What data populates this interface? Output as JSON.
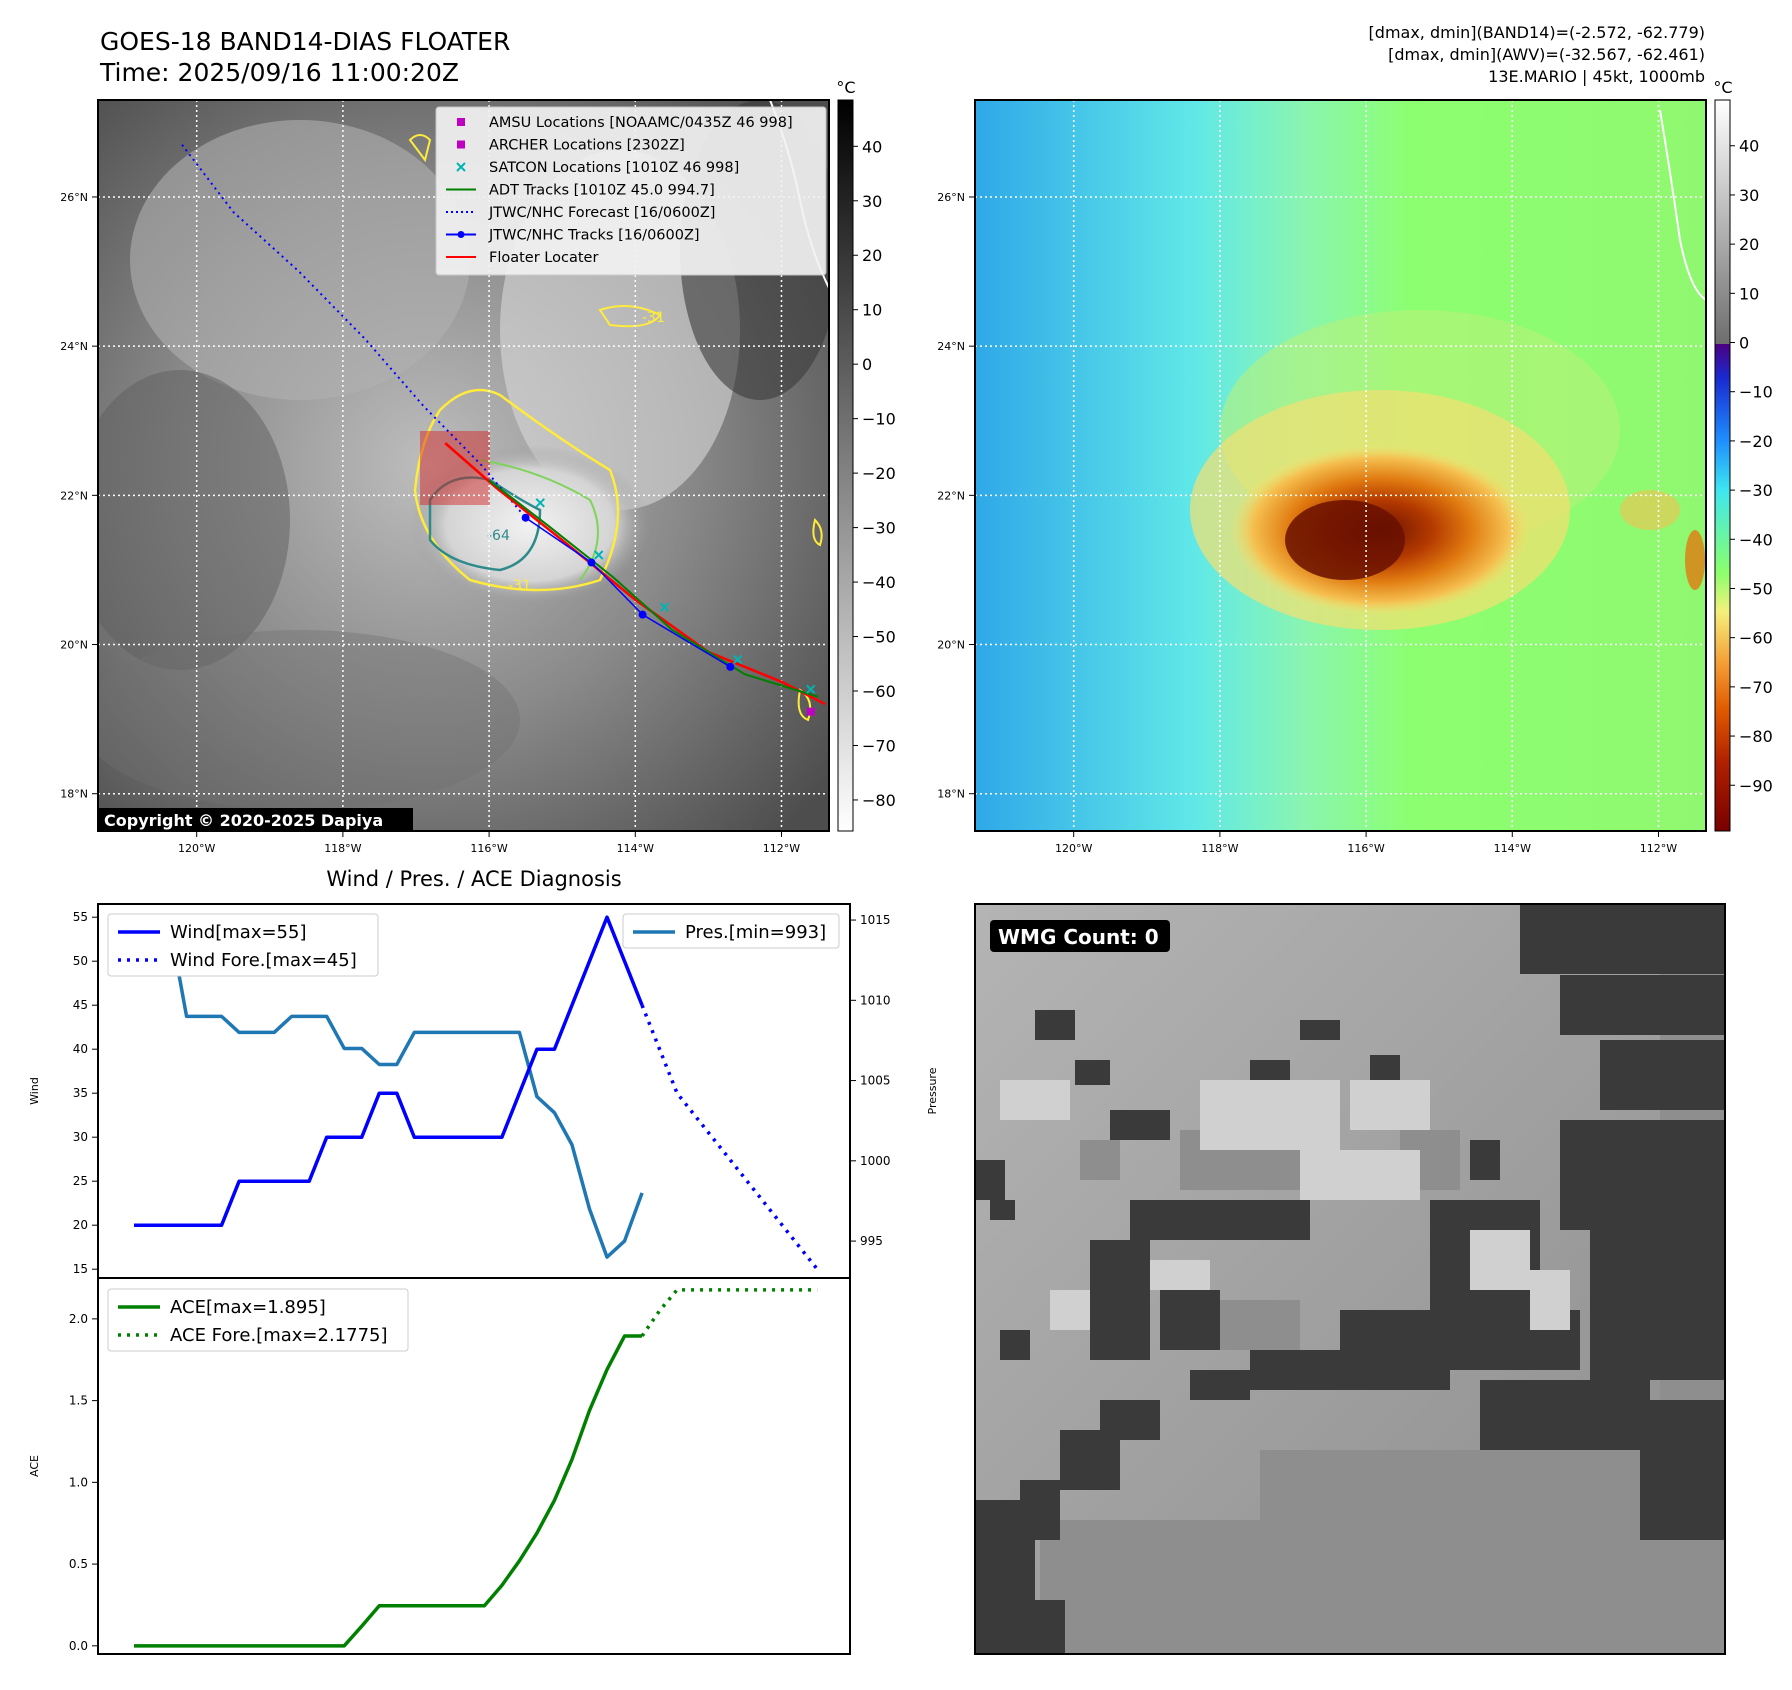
{
  "header": {
    "title": "GOES-18 BAND14-DIAS FLOATER",
    "time": "Time: 2025/09/16 11:00:20Z",
    "stats": [
      "[dmax, dmin](BAND14)=(-2.572, -62.779)",
      "[dmax, dmin](AWV)=(-32.567, -62.461)",
      "13E.MARIO | 45kt, 1000mb"
    ]
  },
  "map": {
    "lat_labels": [
      "26°N",
      "24°N",
      "22°N",
      "20°N",
      "18°N"
    ],
    "lat_values": [
      26,
      24,
      22,
      20,
      18
    ],
    "lon_labels": [
      "120°W",
      "118°W",
      "116°W",
      "114°W",
      "112°W"
    ],
    "lon_values": [
      -120,
      -118,
      -116,
      -114,
      -112
    ],
    "copyright": "Copyright © 2020-2025 Dapiya",
    "contour_labels": [
      "-31",
      "-64",
      "-31"
    ]
  },
  "colorbar_left": {
    "unit": "°C",
    "ticks": [
      "40",
      "30",
      "20",
      "10",
      "0",
      "−10",
      "−20",
      "−30",
      "−40",
      "−50",
      "−60",
      "−70",
      "−80"
    ],
    "values": [
      40,
      30,
      20,
      10,
      0,
      -10,
      -20,
      -30,
      -40,
      -50,
      -60,
      -70,
      -80
    ]
  },
  "colorbar_right": {
    "unit": "°C",
    "ticks": [
      "40",
      "30",
      "20",
      "10",
      "0",
      "−10",
      "−20",
      "−30",
      "−40",
      "−50",
      "−60",
      "−70",
      "−80",
      "−90"
    ],
    "values": [
      40,
      30,
      20,
      10,
      0,
      -10,
      -20,
      -30,
      -40,
      -50,
      -60,
      -70,
      -80,
      -90
    ]
  },
  "legend": [
    {
      "label": "AMSU Locations [NOAAMC/0435Z 46 998]",
      "color": "#c000c0",
      "marker": "square"
    },
    {
      "label": "ARCHER Locations [2302Z]",
      "color": "#c000c0",
      "marker": "square"
    },
    {
      "label": "SATCON Locations [1010Z 46 998]",
      "color": "#00b4b4",
      "marker": "x"
    },
    {
      "label": "ADT Tracks [1010Z 45.0 994.7]",
      "color": "#008000",
      "marker": "line"
    },
    {
      "label": "JTWC/NHC Forecast [16/0600Z]",
      "color": "#0000ff",
      "marker": "dotted"
    },
    {
      "label": "JTWC/NHC Tracks [16/0600Z]",
      "color": "#0000ff",
      "marker": "line-dot"
    },
    {
      "label": "Floater Locater",
      "color": "#ff0000",
      "marker": "line"
    }
  ],
  "tracks": {
    "jtwc_track": [
      [
        -115.5,
        21.7
      ],
      [
        -114.6,
        21.1
      ],
      [
        -113.9,
        20.4
      ],
      [
        -112.7,
        19.7
      ]
    ],
    "jtwc_forecast": [
      [
        -120.2,
        26.7
      ],
      [
        -119.5,
        25.8
      ],
      [
        -118.6,
        25.0
      ],
      [
        -117.7,
        24.1
      ],
      [
        -116.9,
        23.2
      ],
      [
        -116.1,
        22.4
      ],
      [
        -115.5,
        21.7
      ]
    ],
    "floater": [
      [
        -116.6,
        22.7
      ],
      [
        -115.9,
        22.1
      ],
      [
        -115.0,
        21.4
      ],
      [
        -114.0,
        20.6
      ],
      [
        -113.0,
        19.9
      ],
      [
        -112.0,
        19.5
      ],
      [
        -111.4,
        19.2
      ]
    ],
    "adt": [
      [
        -116.0,
        22.2
      ],
      [
        -115.2,
        21.6
      ],
      [
        -114.3,
        20.9
      ],
      [
        -113.5,
        20.2
      ],
      [
        -112.5,
        19.6
      ],
      [
        -111.5,
        19.3
      ]
    ],
    "satcon": [
      [
        -115.3,
        21.9
      ],
      [
        -114.5,
        21.2
      ],
      [
        -113.6,
        20.5
      ],
      [
        -112.6,
        19.8
      ],
      [
        -111.6,
        19.4
      ]
    ],
    "amsu": [
      [
        -111.6,
        19.1
      ]
    ]
  },
  "wmg": {
    "label": "WMG Count: 0"
  },
  "chart_data": [
    {
      "type": "line",
      "title": "Wind / Pres. / ACE Diagnosis",
      "ylabel": "Wind",
      "ylabel_right": "Pressure",
      "x": [
        0,
        1,
        2,
        3,
        4,
        5,
        6,
        7,
        8,
        9,
        10,
        11,
        12,
        13,
        14,
        15,
        16,
        17,
        18,
        19,
        20,
        21,
        22,
        23,
        24,
        25,
        26,
        27,
        28,
        29,
        30,
        31,
        32,
        33,
        34,
        35,
        36,
        37,
        38,
        39
      ],
      "ylim": [
        14,
        56.5
      ],
      "yticks": [
        15,
        20,
        25,
        30,
        35,
        40,
        45,
        50,
        55
      ],
      "y2lim": [
        992.7,
        1016.0
      ],
      "y2ticks": [
        995,
        1000,
        1005,
        1010,
        1015
      ],
      "series": [
        {
          "name": "Wind[max=55]",
          "axis": "left",
          "color": "#0000ff",
          "style": "solid",
          "x": [
            0,
            1,
            2,
            3,
            4,
            5,
            6,
            7,
            8,
            9,
            10,
            11,
            12,
            13,
            14,
            15,
            16,
            17,
            18,
            19,
            20,
            21,
            22,
            23,
            24,
            25,
            26,
            27,
            28,
            29
          ],
          "values": [
            20,
            20,
            20,
            20,
            20,
            20,
            25,
            25,
            25,
            25,
            25,
            30,
            30,
            30,
            35,
            35,
            30,
            30,
            30,
            30,
            30,
            30,
            35,
            40,
            40,
            45,
            50,
            55,
            50,
            45
          ]
        },
        {
          "name": "Wind Fore.[max=45]",
          "axis": "left",
          "color": "#0000ff",
          "style": "dotted",
          "x": [
            29,
            31,
            33,
            35,
            37,
            39
          ],
          "values": [
            45,
            35,
            30,
            25,
            20,
            15
          ]
        },
        {
          "name": "Pres.[min=993]",
          "axis": "right",
          "color": "#1f77b4",
          "style": "solid",
          "x": [
            0,
            1,
            2,
            3,
            4,
            5,
            6,
            7,
            8,
            9,
            10,
            11,
            12,
            13,
            14,
            15,
            16,
            17,
            18,
            19,
            20,
            21,
            22,
            23,
            24,
            25,
            26,
            27,
            28,
            29
          ],
          "values": [
            1015,
            1015,
            1015,
            1009,
            1009,
            1009,
            1008,
            1008,
            1008,
            1009,
            1009,
            1009,
            1007,
            1007,
            1006,
            1006,
            1008,
            1008,
            1008,
            1008,
            1008,
            1008,
            1008,
            1004,
            1003,
            1001,
            997,
            994,
            995,
            998
          ]
        }
      ]
    },
    {
      "type": "line",
      "ylabel": "ACE",
      "ylim": [
        -0.05,
        2.25
      ],
      "yticks": [
        0.0,
        0.5,
        1.0,
        1.5,
        2.0
      ],
      "ytick_labels": [
        "0.0",
        "0.5",
        "1.0",
        "1.5",
        "2.0"
      ],
      "series": [
        {
          "name": "ACE[max=1.895]",
          "color": "#008000",
          "style": "solid",
          "x": [
            0,
            1,
            2,
            3,
            4,
            5,
            6,
            7,
            8,
            9,
            10,
            11,
            12,
            13,
            14,
            15,
            16,
            17,
            18,
            19,
            20,
            21,
            22,
            23,
            24,
            25,
            26,
            27,
            28,
            29
          ],
          "values": [
            0,
            0,
            0,
            0,
            0,
            0,
            0,
            0,
            0,
            0,
            0,
            0,
            0,
            0.12,
            0.245,
            0.245,
            0.245,
            0.245,
            0.245,
            0.245,
            0.245,
            0.37,
            0.52,
            0.69,
            0.89,
            1.14,
            1.44,
            1.69,
            1.895,
            1.895
          ]
        },
        {
          "name": "ACE Fore.[max=2.1775]",
          "color": "#008000",
          "style": "dotted",
          "x": [
            29,
            30,
            31,
            33,
            35,
            37,
            39
          ],
          "values": [
            1.895,
            2.05,
            2.1775,
            2.1775,
            2.1775,
            2.1775,
            2.1775
          ]
        }
      ]
    }
  ]
}
